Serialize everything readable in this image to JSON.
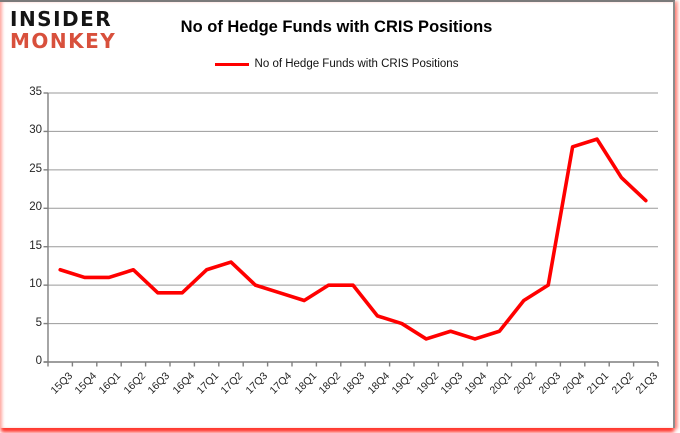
{
  "logo": {
    "line1": "INSIDER",
    "line2": "MONKEY"
  },
  "header": {
    "title": "No of Hedge Funds with CRIS Positions"
  },
  "legend": {
    "label": "No of Hedge Funds with CRIS Positions",
    "line_color": "#ff0000"
  },
  "chart_data": {
    "type": "line",
    "title": "No of Hedge Funds with CRIS Positions",
    "categories": [
      "15Q3",
      "15Q4",
      "16Q1",
      "16Q2",
      "16Q3",
      "16Q4",
      "17Q1",
      "17Q2",
      "17Q3",
      "17Q4",
      "18Q1",
      "18Q2",
      "18Q3",
      "18Q4",
      "19Q1",
      "19Q2",
      "19Q3",
      "19Q4",
      "20Q1",
      "20Q2",
      "20Q3",
      "20Q4",
      "21Q1",
      "21Q2",
      "21Q3"
    ],
    "series": [
      {
        "name": "No of Hedge Funds with CRIS Positions",
        "values": [
          12,
          11,
          11,
          12,
          9,
          9,
          12,
          13,
          10,
          9,
          8,
          10,
          10,
          6,
          5,
          3,
          4,
          3,
          4,
          8,
          10,
          28,
          29,
          24,
          21
        ]
      }
    ],
    "xlabel": "",
    "ylabel": "",
    "ylim": [
      0,
      35
    ],
    "yticks": [
      0,
      5,
      10,
      15,
      20,
      25,
      30,
      35
    ],
    "grid": true,
    "legend_position": "top center",
    "series_color": "#ff0000",
    "gridline_color": "#9a9a9a",
    "axis_color": "#7f7f7f",
    "label_color": "#262626"
  },
  "colors": {
    "logo_primary": "#141414",
    "logo_accent": "#d8503c",
    "frame_border": "#8c8c8c",
    "frame_shadow": "#ff1a00",
    "background": "#ffffff"
  }
}
